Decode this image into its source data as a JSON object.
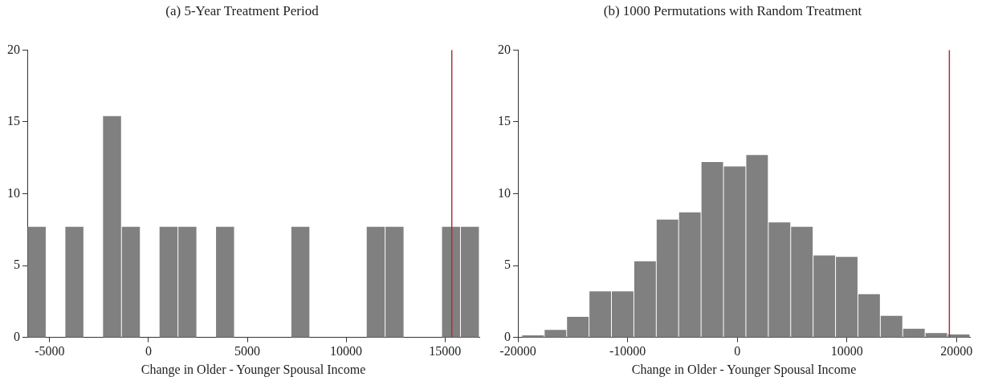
{
  "chart_data": [
    {
      "type": "histogram",
      "title": "(a) 5-Year Treatment Period",
      "xlabel": "Change in Older - Younger Spousal Income",
      "bins": [
        -6135,
        -5182,
        -4229,
        -3276,
        -2323,
        -1370,
        -417,
        536,
        1489,
        2442,
        3395,
        4348,
        5301,
        6254,
        7207,
        8160,
        9113,
        10066,
        11019,
        11972,
        12925,
        13878,
        14831,
        15784,
        16737
      ],
      "values": [
        7.7,
        0,
        7.7,
        0,
        15.4,
        7.7,
        0,
        7.7,
        7.7,
        0,
        7.7,
        0,
        0,
        0,
        7.7,
        0,
        0,
        0,
        7.7,
        7.7,
        0,
        0,
        7.7,
        7.7
      ],
      "color": "#808080",
      "xlim": [
        -6135,
        16740
      ],
      "xticks": [
        -5000,
        0,
        5000,
        10000,
        15000
      ],
      "ylim": [
        0,
        20
      ],
      "yticks": [
        0,
        5,
        10,
        15,
        20
      ],
      "grid": false,
      "legend": false,
      "ref_lines": [
        {
          "axis": "x",
          "value": 15345,
          "color": "#a4323e"
        }
      ]
    },
    {
      "type": "histogram",
      "title": "(b) 1000 Permutations with Random Treatment",
      "xlabel": "Change in Older - Younger Spousal Income",
      "bins": [
        -19642,
        -17599,
        -15556,
        -13513,
        -11470,
        -9427,
        -7384,
        -5341,
        -3298,
        -1255,
        788,
        2831,
        4874,
        6917,
        8960,
        11003,
        13046,
        15089,
        17132,
        19175,
        21218
      ],
      "values": [
        0.14,
        0.52,
        1.43,
        3.2,
        3.2,
        5.3,
        8.2,
        8.7,
        12.2,
        11.9,
        12.7,
        8.0,
        7.7,
        5.7,
        5.6,
        3.0,
        1.5,
        0.6,
        0.3,
        0.2
      ],
      "color": "#808080",
      "xlim": [
        -20000,
        21220
      ],
      "xticks": [
        -20000,
        -10000,
        0,
        10000,
        20000
      ],
      "ylim": [
        0,
        20
      ],
      "yticks": [
        0,
        5,
        10,
        15,
        20
      ],
      "grid": false,
      "legend": false,
      "ref_lines": [
        {
          "axis": "x",
          "value": 19343,
          "color": "#a4323e"
        }
      ]
    }
  ]
}
